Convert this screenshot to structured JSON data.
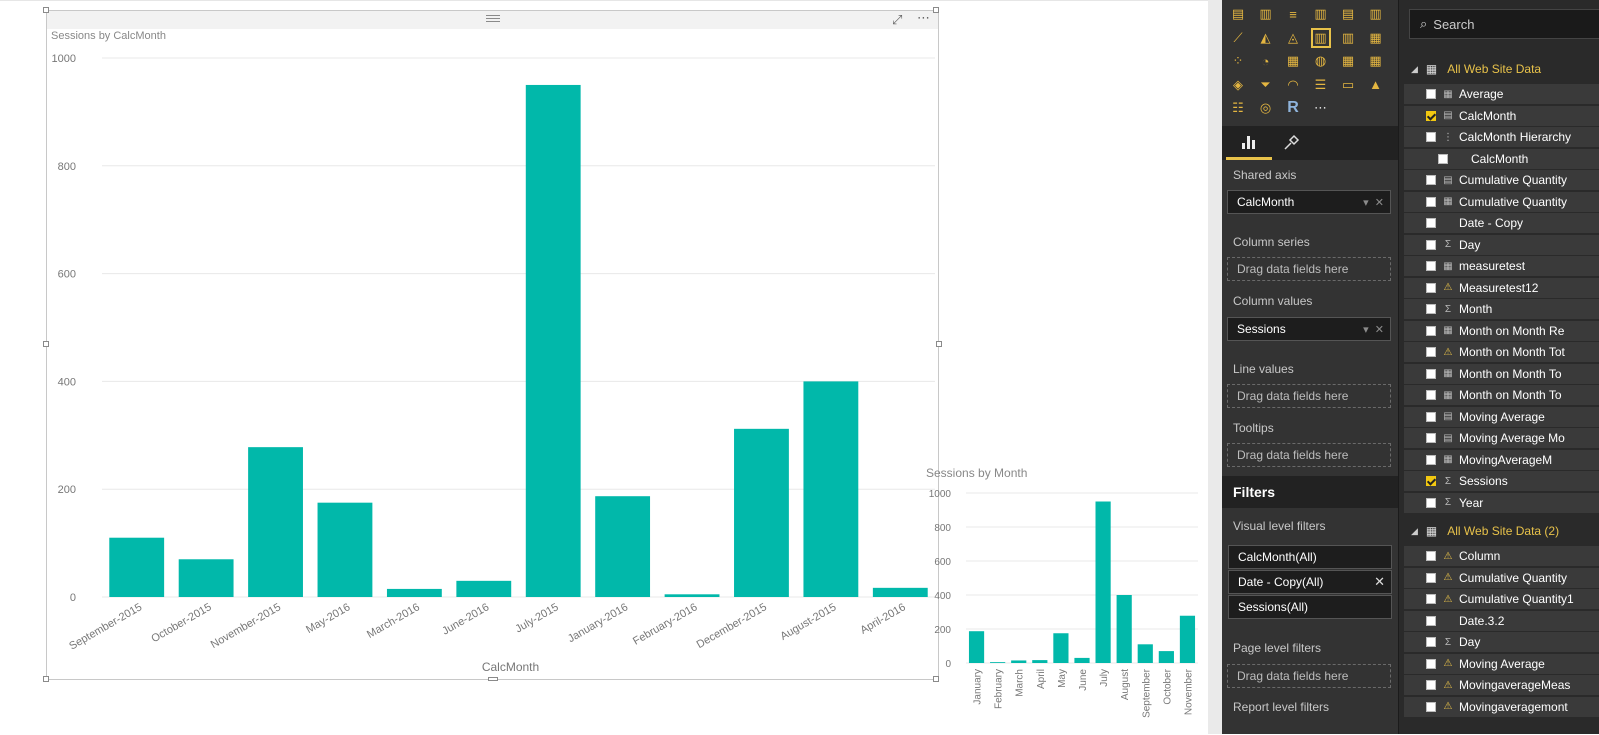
{
  "main_visual": {
    "title": "Sessions by CalcMonth",
    "chart_data": {
      "type": "bar",
      "title": "Sessions by CalcMonth",
      "xlabel": "CalcMonth",
      "ylabel": "",
      "ylim": [
        0,
        1000
      ],
      "yticks": [
        0,
        200,
        400,
        600,
        800,
        1000
      ],
      "categories": [
        "September-2015",
        "October-2015",
        "November-2015",
        "May-2016",
        "March-2016",
        "June-2016",
        "July-2015",
        "January-2016",
        "February-2016",
        "December-2015",
        "August-2015",
        "April-2016"
      ],
      "values": [
        110,
        70,
        278,
        175,
        15,
        30,
        950,
        187,
        5,
        312,
        400,
        17
      ],
      "color": "#01b8aa",
      "grid": true
    }
  },
  "small_visual": {
    "title": "Sessions by Month",
    "chart_data": {
      "type": "bar",
      "title": "Sessions by Month",
      "ylim": [
        0,
        1000
      ],
      "yticks": [
        0,
        200,
        400,
        600,
        800,
        1000
      ],
      "categories": [
        "January",
        "February",
        "March",
        "April",
        "May",
        "June",
        "July",
        "August",
        "September",
        "October",
        "November"
      ],
      "values": [
        187,
        5,
        15,
        17,
        175,
        30,
        950,
        400,
        110,
        70,
        278
      ],
      "color": "#01b8aa",
      "grid": true
    }
  },
  "viz_pane": {
    "icons": [
      "stacked-bar-icon",
      "stacked-column-icon",
      "clustered-bar-icon",
      "clustered-column-icon",
      "100-stacked-bar-icon",
      "100-stacked-column-icon",
      "line-chart-icon",
      "area-chart-icon",
      "stacked-area-icon",
      "line-column-icon",
      "line-stacked-column-icon",
      "ribbon-icon",
      "scatter-icon",
      "pie-icon",
      "treemap-icon",
      "map-icon",
      "table-icon",
      "matrix-icon",
      "filled-map-icon",
      "funnel-icon",
      "gauge-icon",
      "multirow-card-icon",
      "card-icon",
      "kpi-icon",
      "slicer-icon",
      "donut-icon",
      "r-visual-icon",
      "more-icon"
    ],
    "tab_fields_icon": "bar-chart-icon",
    "tab_format_icon": "paint-roller-icon",
    "shared_axis_label": "Shared axis",
    "shared_axis_value": "CalcMonth",
    "column_series_label": "Column series",
    "column_series_placeholder": "Drag data fields here",
    "column_values_label": "Column values",
    "column_values_value": "Sessions",
    "line_values_label": "Line values",
    "line_values_placeholder": "Drag data fields here",
    "tooltips_label": "Tooltips",
    "tooltips_placeholder": "Drag data fields here",
    "filters_header": "Filters",
    "visual_filters_label": "Visual level filters",
    "visual_filters": [
      "CalcMonth(All)",
      "Date - Copy(All)",
      "Sessions(All)"
    ],
    "page_filters_label": "Page level filters",
    "page_filters_placeholder": "Drag data fields here",
    "report_filters_label": "Report level filters"
  },
  "fields_pane": {
    "search_placeholder": "Search",
    "table1": "All Web Site Data",
    "table2": "All Web Site Data (2)",
    "fields1": [
      {
        "name": "Average",
        "icon": "calculator-icon",
        "checked": false
      },
      {
        "name": "CalcMonth",
        "icon": "calculated-column-icon",
        "checked": true
      },
      {
        "name": "CalcMonth Hierarchy",
        "icon": "hierarchy-icon",
        "checked": false
      },
      {
        "name": "CalcMonth",
        "icon": "none",
        "checked": false
      },
      {
        "name": "Cumulative Quantity",
        "icon": "calculated-column-icon",
        "checked": false
      },
      {
        "name": "Cumulative Quantity",
        "icon": "calculator-icon",
        "checked": false
      },
      {
        "name": "Date - Copy",
        "icon": "none",
        "checked": false
      },
      {
        "name": "Day",
        "icon": "sigma-icon",
        "checked": false
      },
      {
        "name": "measuretest",
        "icon": "calculator-icon",
        "checked": false
      },
      {
        "name": "Measuretest12",
        "icon": "warning-icon",
        "checked": false
      },
      {
        "name": "Month",
        "icon": "sigma-icon",
        "checked": false
      },
      {
        "name": "Month on Month Re",
        "icon": "calculator-icon",
        "checked": false
      },
      {
        "name": "Month on Month Tot",
        "icon": "warning-icon",
        "checked": false
      },
      {
        "name": "Month on Month To",
        "icon": "calculator-icon",
        "checked": false
      },
      {
        "name": "Month on Month To",
        "icon": "calculator-icon",
        "checked": false
      },
      {
        "name": "Moving Average",
        "icon": "calculated-column-icon",
        "checked": false
      },
      {
        "name": "Moving Average Mo",
        "icon": "calculated-column-icon",
        "checked": false
      },
      {
        "name": "MovingAverageM",
        "icon": "calculator-icon",
        "checked": false
      },
      {
        "name": "Sessions",
        "icon": "sigma-icon",
        "checked": true
      },
      {
        "name": "Year",
        "icon": "sigma-icon",
        "checked": false
      }
    ],
    "fields2": [
      {
        "name": "Column",
        "icon": "warning-icon",
        "checked": false
      },
      {
        "name": "Cumulative Quantity",
        "icon": "warning-icon",
        "checked": false
      },
      {
        "name": "Cumulative Quantity1",
        "icon": "warning-icon",
        "checked": false
      },
      {
        "name": "Date.3.2",
        "icon": "none",
        "checked": false
      },
      {
        "name": "Day",
        "icon": "sigma-icon",
        "checked": false
      },
      {
        "name": "Moving Average",
        "icon": "warning-icon",
        "checked": false
      },
      {
        "name": "MovingaverageMeas",
        "icon": "warning-icon",
        "checked": false
      },
      {
        "name": "Movingaveragemont",
        "icon": "warning-icon",
        "checked": false
      }
    ]
  }
}
